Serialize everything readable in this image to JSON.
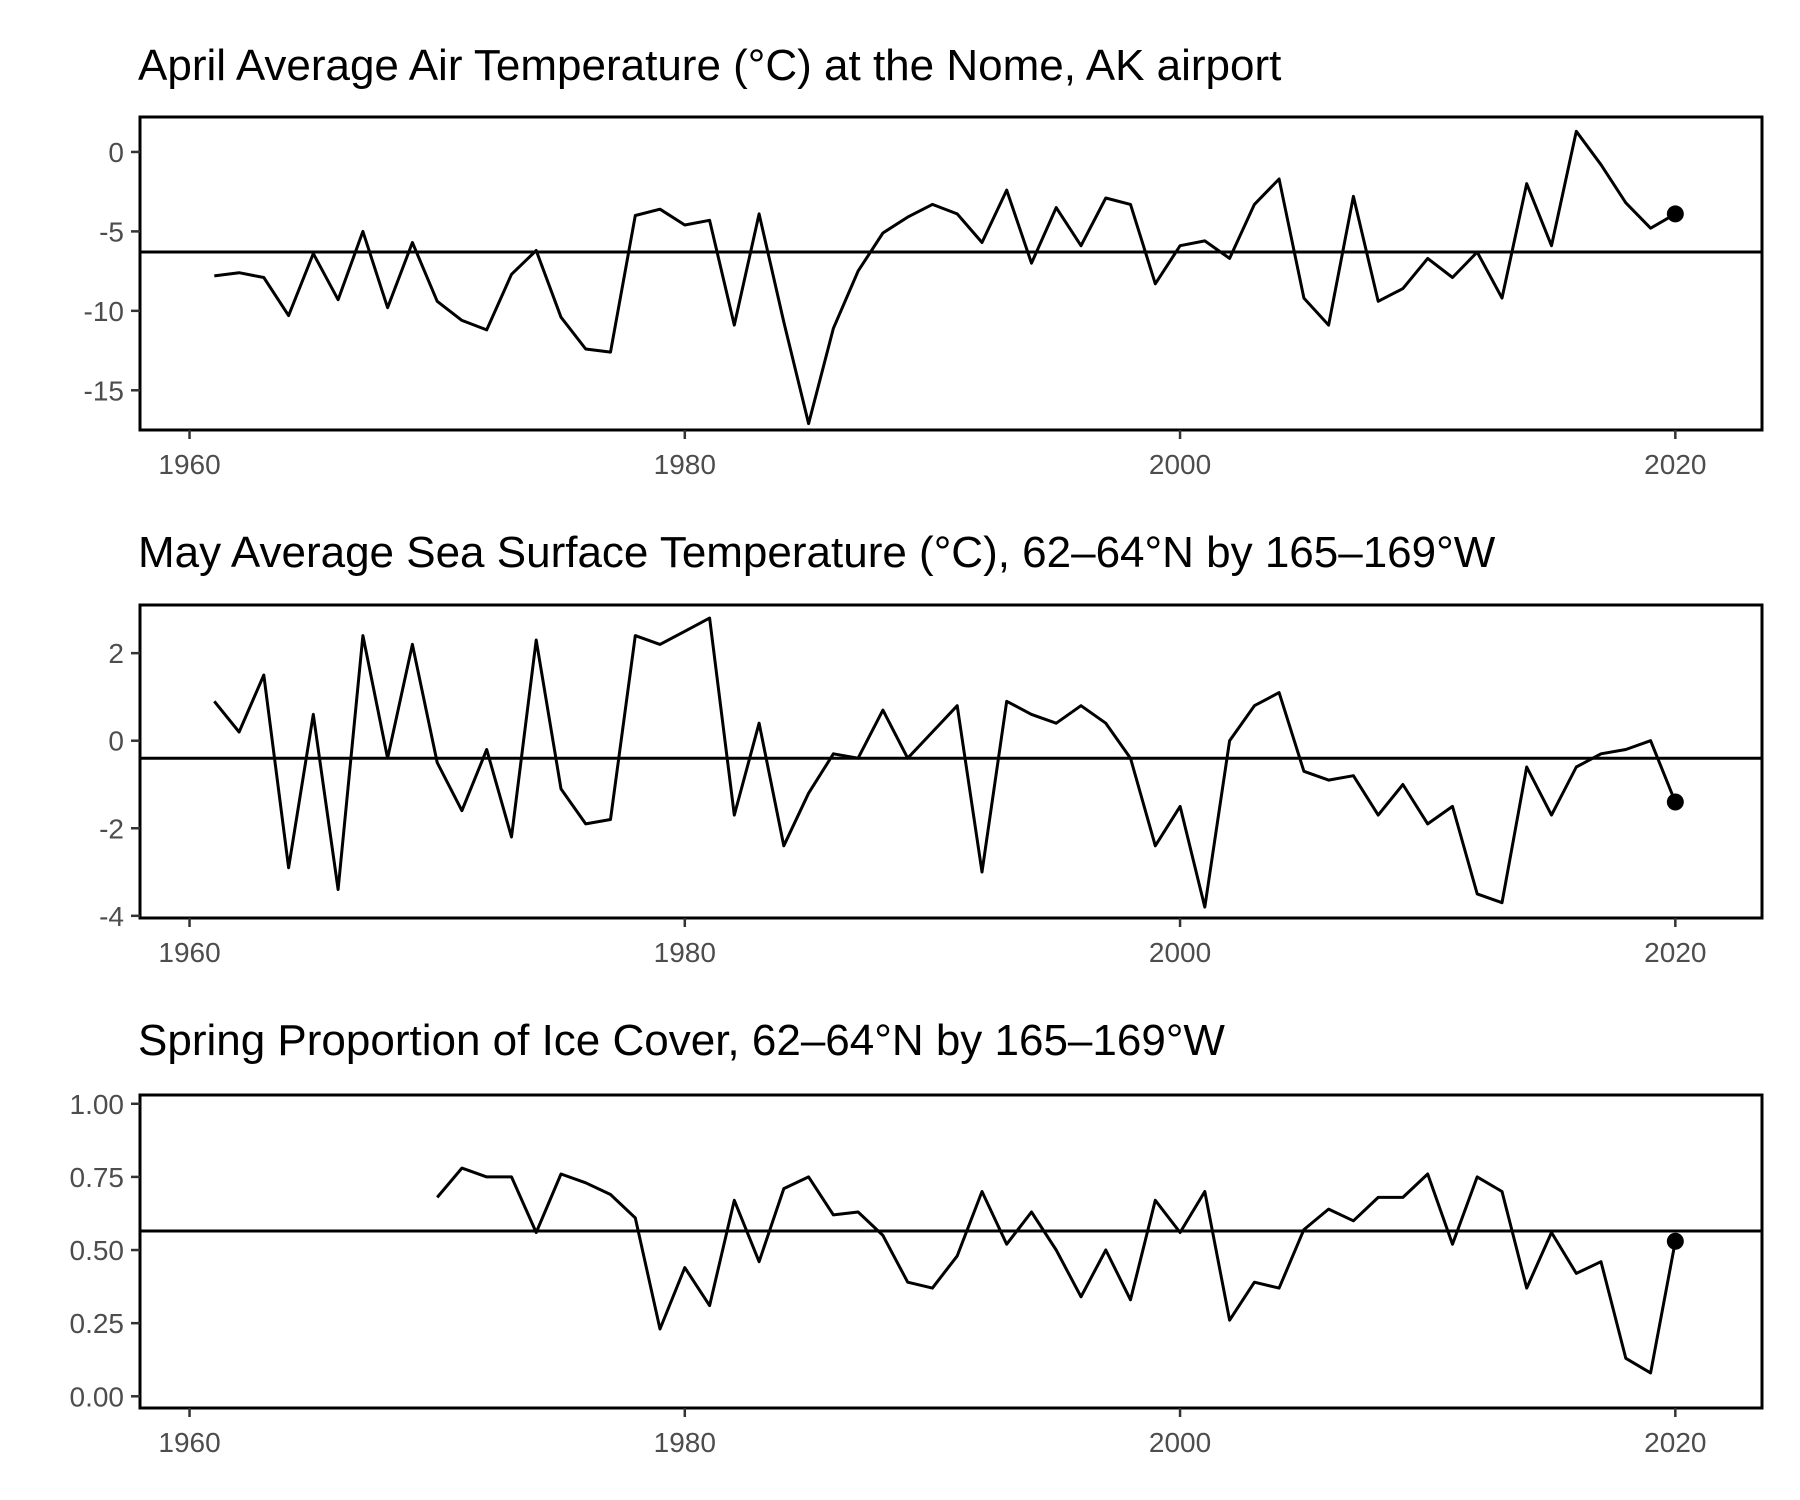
{
  "chart_data": [
    {
      "type": "line",
      "title": "April Average Air Temperature (°C) at the Nome, AK airport",
      "xlim": [
        1958,
        2023.5
      ],
      "ylim": [
        -17.5,
        2.2
      ],
      "xticks": [
        1960,
        1980,
        2000,
        2020
      ],
      "xtick_labels": [
        "1960",
        "1980",
        "2000",
        "2020"
      ],
      "yticks": [
        0,
        -5,
        -10,
        -15
      ],
      "ytick_labels": [
        "0",
        "-5",
        "-10",
        "-15"
      ],
      "mean_line": -6.3,
      "highlight_last_point": true,
      "grid": false,
      "x": [
        1961,
        1962,
        1963,
        1964,
        1965,
        1966,
        1967,
        1968,
        1969,
        1970,
        1971,
        1972,
        1973,
        1974,
        1975,
        1976,
        1977,
        1978,
        1979,
        1980,
        1981,
        1982,
        1983,
        1984,
        1985,
        1986,
        1987,
        1988,
        1989,
        1990,
        1991,
        1992,
        1993,
        1994,
        1995,
        1996,
        1997,
        1998,
        1999,
        2000,
        2001,
        2002,
        2003,
        2004,
        2005,
        2006,
        2007,
        2008,
        2009,
        2010,
        2011,
        2012,
        2013,
        2014,
        2015,
        2016,
        2017,
        2018,
        2019,
        2020
      ],
      "y": [
        -7.8,
        -7.6,
        -7.9,
        -10.3,
        -6.4,
        -9.3,
        -5.0,
        -9.8,
        -5.7,
        -9.4,
        -10.6,
        -11.2,
        -7.7,
        -6.2,
        -10.4,
        -12.4,
        -12.6,
        -4.0,
        -3.6,
        -4.6,
        -4.3,
        -10.9,
        -3.9,
        -10.7,
        -17.1,
        -11.1,
        -7.5,
        -5.1,
        -4.1,
        -3.3,
        -3.9,
        -5.7,
        -2.4,
        -7.0,
        -3.5,
        -5.9,
        -2.9,
        -3.3,
        -8.3,
        -5.9,
        -5.6,
        -6.7,
        -3.3,
        -1.7,
        -9.2,
        -10.9,
        -2.8,
        -9.4,
        -8.6,
        -6.7,
        -7.9,
        -6.3,
        -9.2,
        -2.0,
        -5.9,
        1.3,
        -0.8,
        -3.2,
        -4.8,
        -3.9
      ]
    },
    {
      "type": "line",
      "title": "May Average Sea Surface Temperature (°C), 62–64°N by 165–169°W",
      "xlim": [
        1958,
        2023.5
      ],
      "ylim": [
        -4.05,
        3.1
      ],
      "xticks": [
        1960,
        1980,
        2000,
        2020
      ],
      "xtick_labels": [
        "1960",
        "1980",
        "2000",
        "2020"
      ],
      "yticks": [
        2,
        0,
        -2,
        -4
      ],
      "ytick_labels": [
        "2",
        "0",
        "-2",
        "-4"
      ],
      "mean_line": -0.4,
      "highlight_last_point": true,
      "grid": false,
      "x": [
        1961,
        1962,
        1963,
        1964,
        1965,
        1966,
        1967,
        1968,
        1969,
        1970,
        1971,
        1972,
        1973,
        1974,
        1975,
        1976,
        1977,
        1978,
        1979,
        1980,
        1981,
        1982,
        1983,
        1984,
        1985,
        1986,
        1987,
        1988,
        1989,
        1990,
        1991,
        1992,
        1993,
        1994,
        1995,
        1996,
        1997,
        1998,
        1999,
        2000,
        2001,
        2002,
        2003,
        2004,
        2005,
        2006,
        2007,
        2008,
        2009,
        2010,
        2011,
        2012,
        2013,
        2014,
        2015,
        2016,
        2017,
        2018,
        2019,
        2020
      ],
      "y": [
        0.9,
        0.2,
        1.5,
        -2.9,
        0.6,
        -3.4,
        2.4,
        -0.4,
        2.2,
        -0.5,
        -1.6,
        -0.2,
        -2.2,
        2.3,
        -1.1,
        -1.9,
        -1.8,
        2.4,
        2.2,
        2.5,
        2.8,
        -1.7,
        0.4,
        -2.4,
        -1.2,
        -0.3,
        -0.4,
        0.7,
        -0.4,
        0.2,
        0.8,
        -3.0,
        0.9,
        0.6,
        0.4,
        0.8,
        0.4,
        -0.4,
        -2.4,
        -1.5,
        -3.8,
        0.0,
        0.8,
        1.1,
        -0.7,
        -0.9,
        -0.8,
        -1.7,
        -1.0,
        -1.9,
        -1.5,
        -3.5,
        -3.7,
        -0.6,
        -1.7,
        -0.6,
        -0.3,
        -0.2,
        0.0,
        -1.4
      ]
    },
    {
      "type": "line",
      "title": "Spring Proportion of Ice Cover, 62–64°N by 165–169°W",
      "xlim": [
        1958,
        2023.5
      ],
      "ylim": [
        -0.04,
        1.03
      ],
      "xticks": [
        1960,
        1980,
        2000,
        2020
      ],
      "xtick_labels": [
        "1960",
        "1980",
        "2000",
        "2020"
      ],
      "yticks": [
        1.0,
        0.75,
        0.5,
        0.25,
        0.0
      ],
      "ytick_labels": [
        "1.00",
        "0.75",
        "0.50",
        "0.25",
        "0.00"
      ],
      "mean_line": 0.565,
      "highlight_last_point": true,
      "grid": false,
      "x": [
        1970,
        1971,
        1972,
        1973,
        1974,
        1975,
        1976,
        1977,
        1978,
        1979,
        1980,
        1981,
        1982,
        1983,
        1984,
        1985,
        1986,
        1987,
        1988,
        1989,
        1990,
        1991,
        1992,
        1993,
        1994,
        1995,
        1996,
        1997,
        1998,
        1999,
        2000,
        2001,
        2002,
        2003,
        2004,
        2005,
        2006,
        2007,
        2008,
        2009,
        2010,
        2011,
        2012,
        2013,
        2014,
        2015,
        2016,
        2017,
        2018,
        2019,
        2020
      ],
      "y": [
        0.68,
        0.78,
        0.75,
        0.75,
        0.56,
        0.76,
        0.73,
        0.69,
        0.61,
        0.23,
        0.44,
        0.31,
        0.67,
        0.46,
        0.71,
        0.75,
        0.62,
        0.63,
        0.55,
        0.39,
        0.37,
        0.48,
        0.7,
        0.52,
        0.63,
        0.5,
        0.34,
        0.5,
        0.33,
        0.67,
        0.56,
        0.7,
        0.26,
        0.39,
        0.37,
        0.57,
        0.64,
        0.6,
        0.68,
        0.68,
        0.76,
        0.52,
        0.75,
        0.7,
        0.37,
        0.56,
        0.42,
        0.46,
        0.13,
        0.08,
        0.53
      ]
    }
  ]
}
